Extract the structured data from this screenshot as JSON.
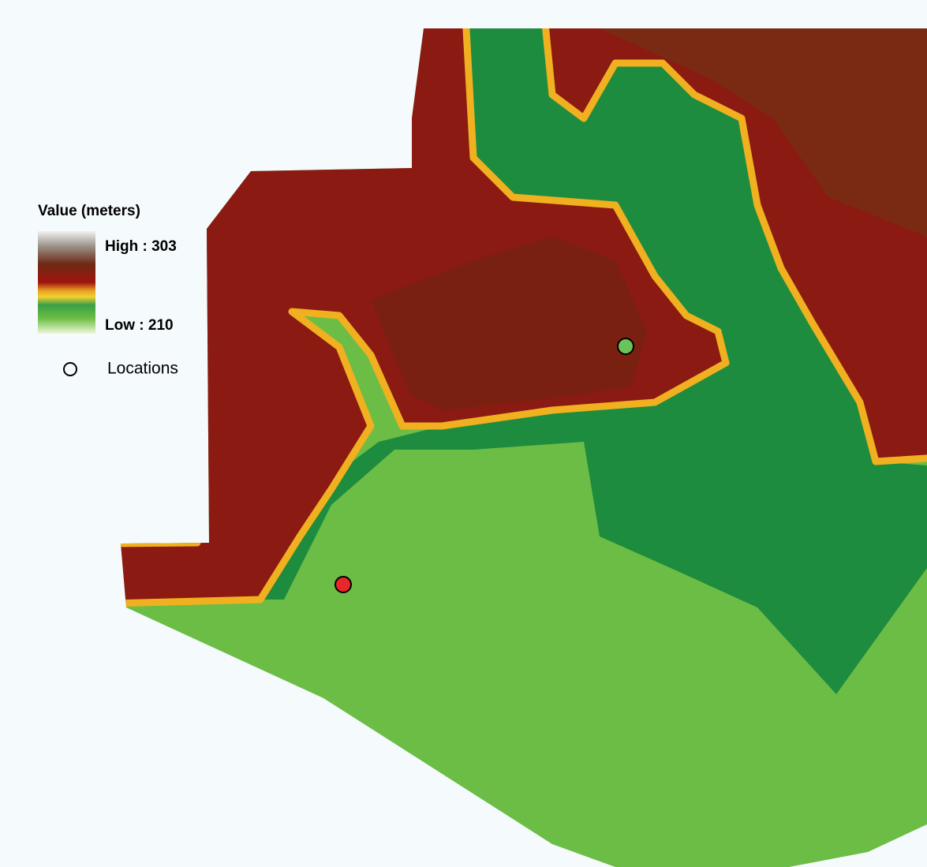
{
  "legend": {
    "title": "Value (meters)",
    "high_label": "High : 303",
    "low_label": "Low : 210",
    "locations_label": "Locations"
  }
}
